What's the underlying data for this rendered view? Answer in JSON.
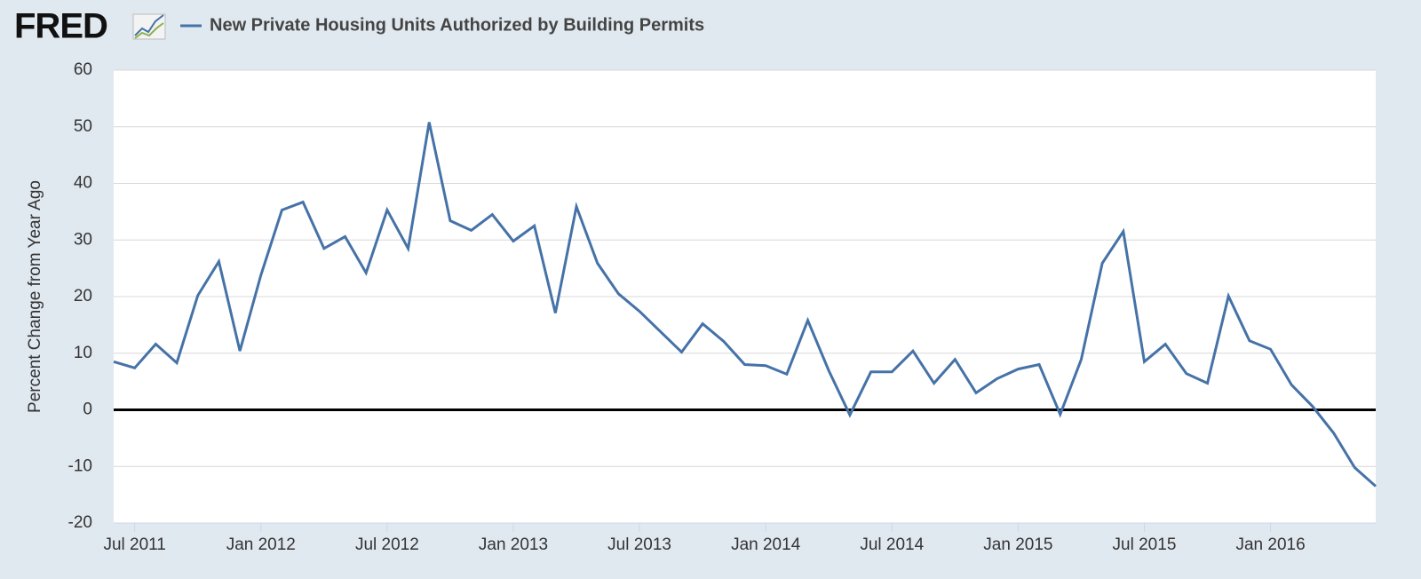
{
  "chart_data": {
    "type": "line",
    "brand": "FRED",
    "y_axis_label": "Percent Change from Year Ago",
    "x": [
      "2011-06",
      "2011-07",
      "2011-08",
      "2011-09",
      "2011-10",
      "2011-11",
      "2011-12",
      "2012-01",
      "2012-02",
      "2012-03",
      "2012-04",
      "2012-05",
      "2012-06",
      "2012-07",
      "2012-08",
      "2012-09",
      "2012-10",
      "2012-11",
      "2012-12",
      "2013-01",
      "2013-02",
      "2013-03",
      "2013-04",
      "2013-05",
      "2013-06",
      "2013-07",
      "2013-08",
      "2013-09",
      "2013-10",
      "2013-11",
      "2013-12",
      "2014-01",
      "2014-02",
      "2014-03",
      "2014-04",
      "2014-05",
      "2014-06",
      "2014-07",
      "2014-08",
      "2014-09",
      "2014-10",
      "2014-11",
      "2014-12",
      "2015-01",
      "2015-02",
      "2015-03",
      "2015-04",
      "2015-05",
      "2015-06",
      "2015-07",
      "2015-08",
      "2015-09",
      "2015-10",
      "2015-11",
      "2015-12",
      "2016-01",
      "2016-02",
      "2016-03",
      "2016-04",
      "2016-05",
      "2016-06"
    ],
    "series": [
      {
        "name": "New Private Housing Units Authorized by Building Permits",
        "color": "#4572a7",
        "values": [
          8.5,
          7.4,
          11.6,
          8.3,
          20.2,
          26.2,
          10.4,
          23.8,
          35.3,
          36.7,
          28.5,
          30.6,
          24.2,
          35.3,
          28.5,
          50.8,
          33.4,
          31.7,
          34.5,
          29.8,
          32.5,
          17.1,
          35.9,
          25.9,
          20.5,
          17.4,
          13.8,
          10.2,
          15.2,
          12.1,
          8.0,
          7.8,
          6.3,
          15.8,
          6.9,
          -0.9,
          6.7,
          6.7,
          10.4,
          4.7,
          8.9,
          3.0,
          5.5,
          7.2,
          8.0,
          -0.8,
          8.9,
          25.9,
          31.5,
          8.5,
          11.6,
          6.4,
          4.7,
          20.1,
          12.2,
          10.7,
          4.4,
          0.6,
          -4.1,
          -10.2,
          -13.5
        ]
      }
    ],
    "xlim": [
      "2011-06",
      "2016-06"
    ],
    "xticks": [
      {
        "value": "2011-07",
        "label": "Jul 2011"
      },
      {
        "value": "2012-01",
        "label": "Jan 2012"
      },
      {
        "value": "2012-07",
        "label": "Jul 2012"
      },
      {
        "value": "2013-01",
        "label": "Jan 2013"
      },
      {
        "value": "2013-07",
        "label": "Jul 2013"
      },
      {
        "value": "2014-01",
        "label": "Jan 2014"
      },
      {
        "value": "2014-07",
        "label": "Jul 2014"
      },
      {
        "value": "2015-01",
        "label": "Jan 2015"
      },
      {
        "value": "2015-07",
        "label": "Jul 2015"
      },
      {
        "value": "2016-01",
        "label": "Jan 2016"
      }
    ],
    "ylim": [
      -20,
      60
    ],
    "yticks": [
      -20,
      -10,
      0,
      10,
      20,
      30,
      40,
      50,
      60
    ],
    "reference_line": 0,
    "grid": true
  }
}
